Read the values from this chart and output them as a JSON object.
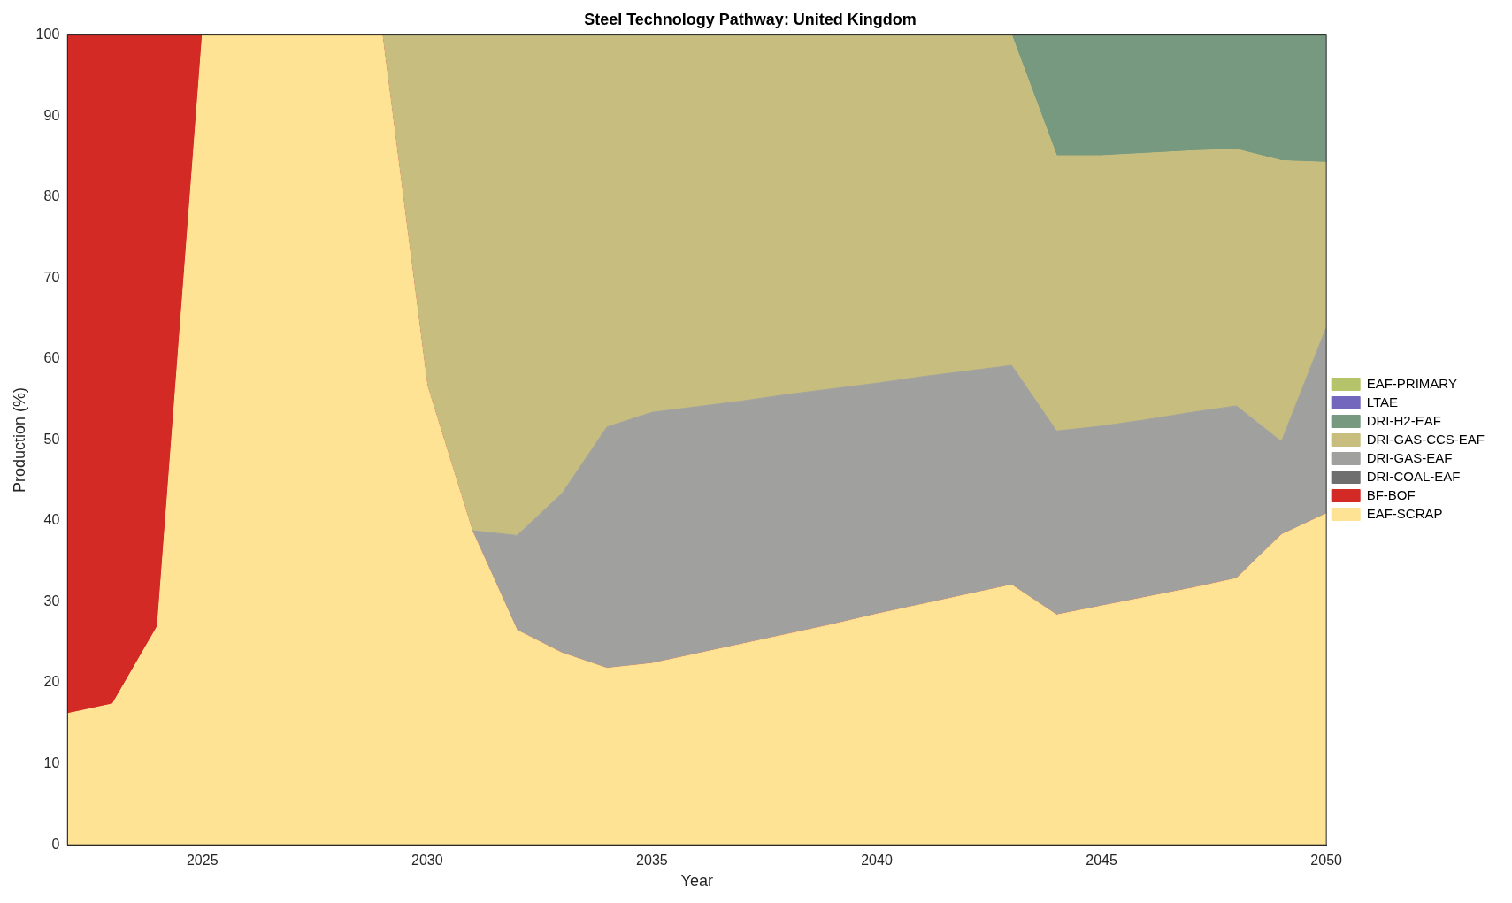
{
  "chart_data": {
    "type": "area",
    "title": "Steel Technology Pathway: United Kingdom",
    "xlabel": "Year",
    "ylabel": "Production (%)",
    "stacked": true,
    "legend": "right",
    "grid": false,
    "x": [
      2022,
      2023,
      2024,
      2025,
      2026,
      2027,
      2028,
      2029,
      2030,
      2031,
      2032,
      2033,
      2034,
      2035,
      2036,
      2037,
      2038,
      2039,
      2040,
      2041,
      2042,
      2043,
      2044,
      2045,
      2046,
      2047,
      2048,
      2049,
      2050
    ],
    "xlim": [
      2022,
      2050
    ],
    "xticks": [
      2025,
      2030,
      2035,
      2040,
      2045,
      2050
    ],
    "ylim": [
      0,
      100
    ],
    "yticks": [
      0,
      10,
      20,
      30,
      40,
      50,
      60,
      70,
      80,
      90,
      100
    ],
    "series": [
      {
        "name": "EAF-SCRAP",
        "color": "#fee394",
        "values": [
          16.2,
          17.4,
          27.0,
          100,
          100,
          100,
          100,
          100,
          56.7,
          38.8,
          26.5,
          23.7,
          21.8,
          22.4,
          23.6,
          24.8,
          26.0,
          27.2,
          28.5,
          29.7,
          30.9,
          32.1,
          28.4,
          29.5,
          30.6,
          31.7,
          32.9,
          38.3,
          40.9
        ]
      },
      {
        "name": "BF-BOF",
        "color": "#d42a25",
        "values": [
          83.8,
          82.6,
          73.0,
          0,
          0,
          0,
          0,
          0,
          0,
          0,
          0,
          0,
          0,
          0,
          0,
          0,
          0,
          0,
          0,
          0,
          0,
          0,
          0,
          0,
          0,
          0,
          0,
          0,
          0
        ]
      },
      {
        "name": "DRI-COAL-EAF",
        "color": "#6f6f6f",
        "values": [
          null,
          null,
          null,
          null,
          null,
          null,
          null,
          null,
          null,
          null,
          null,
          null,
          null,
          null,
          null,
          null,
          null,
          null,
          null,
          null,
          null,
          null,
          null,
          null,
          null,
          null,
          null,
          null,
          null
        ]
      },
      {
        "name": "DRI-GAS-EAF",
        "color": "#a0a09e",
        "values": [
          0,
          0,
          0,
          0,
          0,
          0,
          0,
          0,
          0,
          0,
          11.7,
          19.7,
          29.8,
          31.0,
          30.5,
          30.0,
          29.6,
          29.1,
          28.5,
          28.1,
          27.6,
          27.1,
          22.7,
          22.2,
          21.9,
          21.7,
          21.3,
          11.5,
          23.0
        ]
      },
      {
        "name": "DRI-GAS-CCS-EAF",
        "color": "#c6bd7e",
        "values": [
          0,
          0,
          0,
          0,
          0,
          0,
          0,
          0,
          43.3,
          61.2,
          61.8,
          56.6,
          48.4,
          46.6,
          45.9,
          45.2,
          44.4,
          43.7,
          43.0,
          42.2,
          41.5,
          40.8,
          34.0,
          33.4,
          32.9,
          32.3,
          31.7,
          34.7,
          20.4
        ]
      },
      {
        "name": "DRI-H2-EAF",
        "color": "#76997f",
        "values": [
          0,
          0,
          0,
          0,
          0,
          0,
          0,
          0,
          0,
          0,
          0,
          0,
          0,
          0,
          0,
          0,
          0,
          0,
          0,
          0,
          0,
          0,
          14.9,
          14.9,
          14.6,
          14.3,
          14.1,
          15.5,
          15.7
        ]
      },
      {
        "name": "LTAE",
        "color": "#7366bd",
        "values": [
          null,
          null,
          null,
          null,
          null,
          null,
          null,
          null,
          null,
          null,
          null,
          null,
          null,
          null,
          null,
          null,
          null,
          null,
          null,
          null,
          null,
          null,
          null,
          null,
          null,
          null,
          null,
          null,
          null
        ]
      },
      {
        "name": "EAF-PRIMARY",
        "color": "#b5c36a",
        "values": [
          null,
          null,
          null,
          null,
          null,
          null,
          null,
          null,
          null,
          null,
          null,
          null,
          null,
          null,
          null,
          null,
          null,
          null,
          null,
          null,
          null,
          null,
          null,
          null,
          null,
          null,
          null,
          null,
          null
        ]
      }
    ]
  }
}
